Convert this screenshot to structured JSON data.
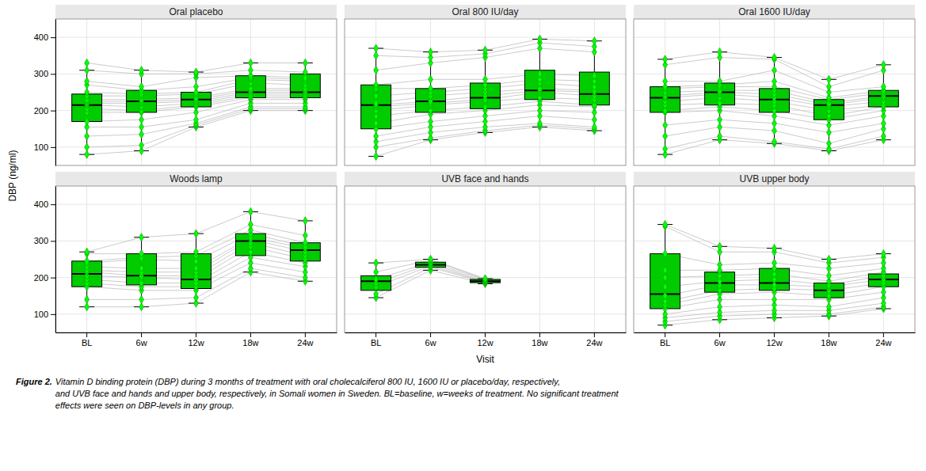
{
  "chart_data": {
    "type": "box",
    "ylabel": "DBP (ng/ml)",
    "xlabel": "Visit",
    "ylim": [
      50,
      450
    ],
    "yticks": [
      100,
      200,
      300,
      400
    ],
    "grid": true,
    "color": "#00CC00",
    "annotations": [
      "Figure 2.",
      " Vitamin D binding protein (DBP) during 3 months of treatment with oral cholecalciferol 800 IU, 1600 IU or placebo/day, respectively,\nand UVB face and hands and upper body, respectively, in Somali women in Sweden.  BL=baseline, w=weeks of treatment. No significant treatment\neffects were seen on DBP-levels in any group."
    ],
    "panels": [
      {
        "title": "Oral placebo",
        "categories": [
          "BL",
          "6w",
          "12w",
          "18w",
          "24w"
        ],
        "boxes": [
          {
            "med": 215,
            "q1": 170,
            "q3": 245,
            "whislo": 80,
            "whishi": 310
          },
          {
            "med": 225,
            "q1": 195,
            "q3": 255,
            "whislo": 90,
            "whishi": 310
          },
          {
            "med": 230,
            "q1": 210,
            "q3": 250,
            "whislo": 155,
            "whishi": 305
          },
          {
            "med": 250,
            "q1": 235,
            "q3": 295,
            "whislo": 200,
            "whishi": 330
          },
          {
            "med": 250,
            "q1": 235,
            "q3": 300,
            "whislo": 200,
            "whishi": 330
          }
        ],
        "points": [
          [
            80,
            100,
            130,
            155,
            170,
            195,
            205,
            215,
            220,
            225,
            230,
            240,
            250,
            270,
            280,
            310,
            330
          ],
          [
            90,
            105,
            135,
            155,
            175,
            195,
            200,
            210,
            220,
            225,
            230,
            240,
            245,
            255,
            265,
            300,
            310
          ],
          [
            155,
            160,
            165,
            175,
            195,
            210,
            215,
            220,
            225,
            230,
            235,
            245,
            250,
            265,
            290,
            300,
            305
          ],
          [
            200,
            205,
            210,
            220,
            230,
            235,
            240,
            245,
            250,
            255,
            260,
            275,
            285,
            290,
            295,
            310,
            330
          ],
          [
            200,
            205,
            210,
            220,
            230,
            235,
            240,
            245,
            250,
            255,
            260,
            270,
            280,
            285,
            290,
            305,
            330
          ]
        ]
      },
      {
        "title": "Oral 800 IU/day",
        "categories": [
          "BL",
          "6w",
          "12w",
          "18w",
          "24w"
        ],
        "boxes": [
          {
            "med": 215,
            "q1": 150,
            "q3": 270,
            "whislo": 75,
            "whishi": 370
          },
          {
            "med": 225,
            "q1": 195,
            "q3": 260,
            "whislo": 120,
            "whishi": 360
          },
          {
            "med": 235,
            "q1": 205,
            "q3": 275,
            "whislo": 140,
            "whishi": 365
          },
          {
            "med": 255,
            "q1": 230,
            "q3": 310,
            "whislo": 155,
            "whishi": 395
          },
          {
            "med": 245,
            "q1": 215,
            "q3": 305,
            "whislo": 145,
            "whishi": 390
          }
        ],
        "points": [
          [
            75,
            100,
            115,
            130,
            150,
            165,
            185,
            200,
            210,
            215,
            220,
            240,
            260,
            270,
            310,
            350,
            370
          ],
          [
            120,
            125,
            140,
            155,
            170,
            190,
            200,
            215,
            220,
            225,
            240,
            250,
            260,
            285,
            330,
            345,
            360
          ],
          [
            140,
            145,
            155,
            170,
            185,
            200,
            210,
            225,
            230,
            240,
            250,
            260,
            270,
            285,
            345,
            355,
            365
          ],
          [
            155,
            160,
            165,
            185,
            200,
            215,
            225,
            235,
            250,
            255,
            260,
            275,
            285,
            300,
            370,
            385,
            395
          ],
          [
            145,
            150,
            155,
            175,
            195,
            210,
            215,
            230,
            240,
            250,
            255,
            265,
            280,
            295,
            360,
            375,
            390
          ]
        ]
      },
      {
        "title": "Oral 1600 IU/day",
        "categories": [
          "BL",
          "6w",
          "12w",
          "18w",
          "24w"
        ],
        "boxes": [
          {
            "med": 235,
            "q1": 195,
            "q3": 265,
            "whislo": 80,
            "whishi": 340
          },
          {
            "med": 250,
            "q1": 215,
            "q3": 275,
            "whislo": 120,
            "whishi": 360
          },
          {
            "med": 230,
            "q1": 195,
            "q3": 260,
            "whislo": 110,
            "whishi": 345
          },
          {
            "med": 215,
            "q1": 175,
            "q3": 230,
            "whislo": 90,
            "whishi": 285
          },
          {
            "med": 240,
            "q1": 210,
            "q3": 255,
            "whislo": 120,
            "whishi": 325
          }
        ],
        "points": [
          [
            80,
            95,
            130,
            160,
            195,
            200,
            215,
            225,
            235,
            240,
            250,
            260,
            265,
            280,
            325,
            340
          ],
          [
            120,
            130,
            155,
            175,
            200,
            210,
            220,
            235,
            245,
            250,
            255,
            265,
            270,
            280,
            345,
            360
          ],
          [
            110,
            115,
            145,
            165,
            185,
            200,
            215,
            225,
            235,
            245,
            255,
            265,
            280,
            310,
            340,
            345
          ],
          [
            90,
            95,
            110,
            140,
            160,
            175,
            185,
            200,
            210,
            215,
            220,
            230,
            235,
            250,
            265,
            285
          ],
          [
            120,
            130,
            150,
            165,
            185,
            200,
            210,
            215,
            225,
            235,
            240,
            248,
            255,
            265,
            310,
            325
          ]
        ]
      },
      {
        "title": "Woods lamp",
        "categories": [
          "BL",
          "6w",
          "12w",
          "18w",
          "24w"
        ],
        "boxes": [
          {
            "med": 210,
            "q1": 175,
            "q3": 245,
            "whislo": 120,
            "whishi": 270
          },
          {
            "med": 205,
            "q1": 180,
            "q3": 265,
            "whislo": 120,
            "whishi": 310
          },
          {
            "med": 195,
            "q1": 170,
            "q3": 265,
            "whislo": 130,
            "whishi": 320
          },
          {
            "med": 300,
            "q1": 260,
            "q3": 320,
            "whislo": 215,
            "whishi": 380
          },
          {
            "med": 275,
            "q1": 245,
            "q3": 295,
            "whislo": 190,
            "whishi": 355
          }
        ],
        "points": [
          [
            120,
            140,
            175,
            185,
            195,
            205,
            215,
            220,
            230,
            240,
            245,
            265,
            270
          ],
          [
            120,
            140,
            165,
            175,
            185,
            200,
            205,
            215,
            225,
            250,
            255,
            265,
            310
          ],
          [
            130,
            145,
            165,
            175,
            185,
            195,
            205,
            215,
            225,
            245,
            260,
            270,
            320
          ],
          [
            215,
            225,
            240,
            255,
            270,
            285,
            295,
            305,
            310,
            320,
            330,
            345,
            380
          ],
          [
            190,
            200,
            215,
            230,
            240,
            250,
            260,
            270,
            280,
            285,
            295,
            315,
            355
          ]
        ]
      },
      {
        "title": "UVB face and hands",
        "categories": [
          "BL",
          "6w",
          "12w",
          "18w",
          "24w"
        ],
        "boxes": [
          {
            "med": 190,
            "q1": 165,
            "q3": 205,
            "whislo": 145,
            "whishi": 240
          },
          {
            "med": 235,
            "q1": 228,
            "q3": 242,
            "whislo": 220,
            "whishi": 250
          },
          {
            "med": 190,
            "q1": 186,
            "q3": 195,
            "whislo": 183,
            "whishi": 197
          },
          null,
          null
        ],
        "points": [
          [
            145,
            155,
            175,
            185,
            195,
            215,
            240
          ],
          [
            220,
            228,
            232,
            237,
            242,
            248,
            250
          ],
          [
            183,
            186,
            188,
            190,
            193,
            195,
            197
          ],
          [],
          []
        ]
      },
      {
        "title": "UVB upper body",
        "categories": [
          "BL",
          "6w",
          "12w",
          "18w",
          "24w"
        ],
        "boxes": [
          {
            "med": 155,
            "q1": 115,
            "q3": 265,
            "whislo": 70,
            "whishi": 345
          },
          {
            "med": 185,
            "q1": 160,
            "q3": 215,
            "whislo": 85,
            "whishi": 285
          },
          {
            "med": 185,
            "q1": 165,
            "q3": 225,
            "whislo": 90,
            "whishi": 280
          },
          {
            "med": 165,
            "q1": 145,
            "q3": 185,
            "whislo": 95,
            "whishi": 250
          },
          {
            "med": 195,
            "q1": 175,
            "q3": 210,
            "whislo": 115,
            "whishi": 265
          }
        ],
        "points": [
          [
            70,
            80,
            90,
            100,
            115,
            125,
            135,
            150,
            175,
            200,
            220,
            265,
            340,
            345
          ],
          [
            85,
            95,
            105,
            120,
            140,
            155,
            165,
            180,
            190,
            205,
            220,
            235,
            270,
            285
          ],
          [
            90,
            100,
            110,
            125,
            140,
            160,
            170,
            180,
            195,
            210,
            225,
            240,
            270,
            280
          ],
          [
            95,
            100,
            110,
            120,
            140,
            150,
            165,
            175,
            180,
            190,
            205,
            225,
            240,
            250
          ],
          [
            115,
            120,
            130,
            145,
            160,
            175,
            185,
            195,
            205,
            215,
            225,
            240,
            255,
            265
          ]
        ]
      }
    ]
  }
}
